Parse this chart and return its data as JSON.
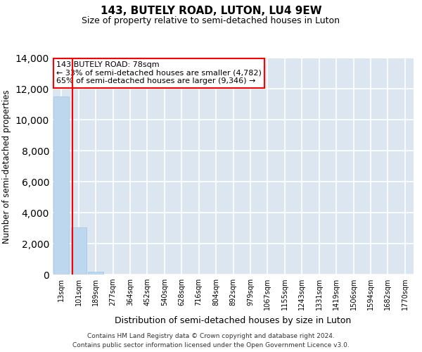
{
  "title": "143, BUTELY ROAD, LUTON, LU4 9EW",
  "subtitle": "Size of property relative to semi-detached houses in Luton",
  "xlabel": "Distribution of semi-detached houses by size in Luton",
  "ylabel": "Number of semi-detached properties",
  "categories": [
    "13sqm",
    "101sqm",
    "189sqm",
    "277sqm",
    "364sqm",
    "452sqm",
    "540sqm",
    "628sqm",
    "716sqm",
    "804sqm",
    "892sqm",
    "979sqm",
    "1067sqm",
    "1155sqm",
    "1243sqm",
    "1331sqm",
    "1419sqm",
    "1506sqm",
    "1594sqm",
    "1682sqm",
    "1770sqm"
  ],
  "values": [
    11500,
    3050,
    170,
    0,
    0,
    0,
    0,
    0,
    0,
    0,
    0,
    0,
    0,
    0,
    0,
    0,
    0,
    0,
    0,
    0,
    0
  ],
  "bar_color": "#bdd7ee",
  "bar_edge_color": "#9dc3e6",
  "background_color": "#dce6f1",
  "grid_color": "#ffffff",
  "annotation_text": "143 BUTELY ROAD: 78sqm\n← 33% of semi-detached houses are smaller (4,782)\n65% of semi-detached houses are larger (9,346) →",
  "annotation_box_color": "#ffffff",
  "annotation_border_color": "#ff0000",
  "property_line_color": "#ff0000",
  "ylim": [
    0,
    14000
  ],
  "yticks": [
    0,
    2000,
    4000,
    6000,
    8000,
    10000,
    12000,
    14000
  ],
  "footer_line1": "Contains HM Land Registry data © Crown copyright and database right 2024.",
  "footer_line2": "Contains public sector information licensed under the Open Government Licence v3.0."
}
